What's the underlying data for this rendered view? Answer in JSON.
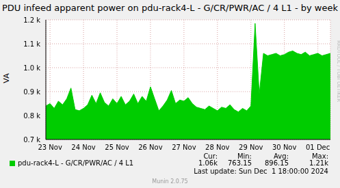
{
  "chart_data": {
    "type": "area",
    "title": "PDU infeed apparent power on pdu-rack4-L - G/CR/PWR/AC / 4 L1 - by week",
    "y_label": "VA",
    "categories": [
      null,
      "23 Nov",
      null,
      null,
      null,
      null,
      null,
      null,
      null,
      "24 Nov",
      null,
      null,
      null,
      null,
      null,
      null,
      null,
      "25 Nov",
      null,
      null,
      null,
      null,
      null,
      null,
      null,
      "26 Nov",
      null,
      null,
      null,
      null,
      null,
      null,
      null,
      "27 Nov",
      null,
      null,
      null,
      null,
      null,
      null,
      null,
      "28 Nov",
      null,
      null,
      null,
      null,
      null,
      null,
      null,
      "29 Nov",
      null,
      null,
      null,
      null,
      null,
      null,
      null,
      "30 Nov",
      null,
      null,
      null,
      null,
      null,
      null,
      null,
      "01 Dec",
      null,
      null,
      null
    ],
    "series": [
      {
        "name": "pdu-rack4-L - G/CR/PWR/AC / 4 L1",
        "color": "#00cc00",
        "values": [
          840,
          850,
          830,
          860,
          845,
          870,
          915,
          825,
          820,
          830,
          845,
          885,
          850,
          895,
          855,
          840,
          870,
          850,
          880,
          845,
          860,
          890,
          850,
          880,
          860,
          920,
          870,
          820,
          840,
          865,
          905,
          850,
          865,
          860,
          875,
          850,
          835,
          830,
          825,
          840,
          830,
          820,
          835,
          830,
          845,
          825,
          815,
          830,
          820,
          840,
          1185,
          890,
          1060,
          1050,
          1055,
          1060,
          1050,
          1055,
          1065,
          1070,
          1060,
          1055,
          1065,
          1050,
          1055,
          1060,
          1050,
          1055,
          1060
        ]
      }
    ],
    "ylim": [
      700,
      1200
    ],
    "yticks": [
      {
        "value": 700,
        "label": "0.7 k"
      },
      {
        "value": 800,
        "label": "0.8 k"
      },
      {
        "value": 900,
        "label": "0.9 k"
      },
      {
        "value": 1000,
        "label": "1.0 k"
      },
      {
        "value": 1100,
        "label": "1.1 k"
      },
      {
        "value": 1200,
        "label": "1.2 k"
      }
    ],
    "grid": true,
    "stats": {
      "headers": [
        "Cur:",
        "Min:",
        "Avg:",
        "Max:"
      ],
      "values": [
        "1.06k",
        "763.15",
        "896.15",
        "1.21k"
      ]
    },
    "annotations": [
      "Last update: Sun Dec  1 18:00:00 2024",
      "Munin 2.0.75",
      "RRDTOOL / TOBI OETIKER"
    ]
  }
}
